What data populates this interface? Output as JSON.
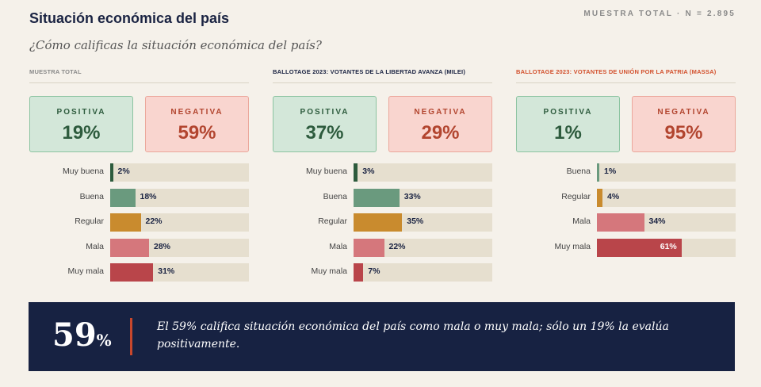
{
  "header": {
    "title": "Situación económica del país",
    "sample": "MUESTRA TOTAL · N = 2.895",
    "subtitle": "¿Cómo calificas la situación económica del país?"
  },
  "colors": {
    "muy_buena": "#2d5b3d",
    "buena": "#6a9a7e",
    "regular": "#c98b2e",
    "mala": "#d5777c",
    "muy_mala": "#b9454a",
    "track": "#e6dfcf",
    "footer_bg": "#172242"
  },
  "panels": [
    {
      "label": "MUESTRA TOTAL",
      "positive_label": "POSITIVA",
      "positive_value": "19%",
      "negative_label": "NEGATIVA",
      "negative_value": "59%"
    },
    {
      "label": "BALLOTAGE 2023: VOTANTES DE LA LIBERTAD AVANZA (MILEI)",
      "positive_label": "POSITIVA",
      "positive_value": "37%",
      "negative_label": "NEGATIVA",
      "negative_value": "29%"
    },
    {
      "label": "BALLOTAGE 2023: VOTANTES DE UNIÓN POR LA PATRIA (MASSA)",
      "positive_label": "POSITIVA",
      "positive_value": "1%",
      "negative_label": "NEGATIVA",
      "negative_value": "95%"
    }
  ],
  "chart_data": [
    {
      "type": "bar",
      "orientation": "horizontal",
      "categories": [
        "Muy buena",
        "Buena",
        "Regular",
        "Mala",
        "Muy mala"
      ],
      "values": [
        2,
        18,
        22,
        28,
        31
      ],
      "value_labels": [
        "2%",
        "18%",
        "22%",
        "28%",
        "31%"
      ],
      "color_keys": [
        "muy_buena",
        "buena",
        "regular",
        "mala",
        "muy_mala"
      ],
      "xlim": [
        0,
        100
      ]
    },
    {
      "type": "bar",
      "orientation": "horizontal",
      "categories": [
        "Muy buena",
        "Buena",
        "Regular",
        "Mala",
        "Muy mala"
      ],
      "values": [
        3,
        33,
        35,
        22,
        7
      ],
      "value_labels": [
        "3%",
        "33%",
        "35%",
        "22%",
        "7%"
      ],
      "color_keys": [
        "muy_buena",
        "buena",
        "regular",
        "mala",
        "muy_mala"
      ],
      "xlim": [
        0,
        100
      ]
    },
    {
      "type": "bar",
      "orientation": "horizontal",
      "categories": [
        "Buena",
        "Regular",
        "Mala",
        "Muy mala"
      ],
      "values": [
        1,
        4,
        34,
        61
      ],
      "value_labels": [
        "1%",
        "4%",
        "34%",
        "61%"
      ],
      "color_keys": [
        "buena",
        "regular",
        "mala",
        "muy_mala"
      ],
      "xlim": [
        0,
        100
      ]
    }
  ],
  "footer": {
    "big_number": "59",
    "big_unit": "%",
    "text": "El 59% califica situación económica del país como mala o muy mala; sólo un 19% la evalúa positivamente."
  }
}
